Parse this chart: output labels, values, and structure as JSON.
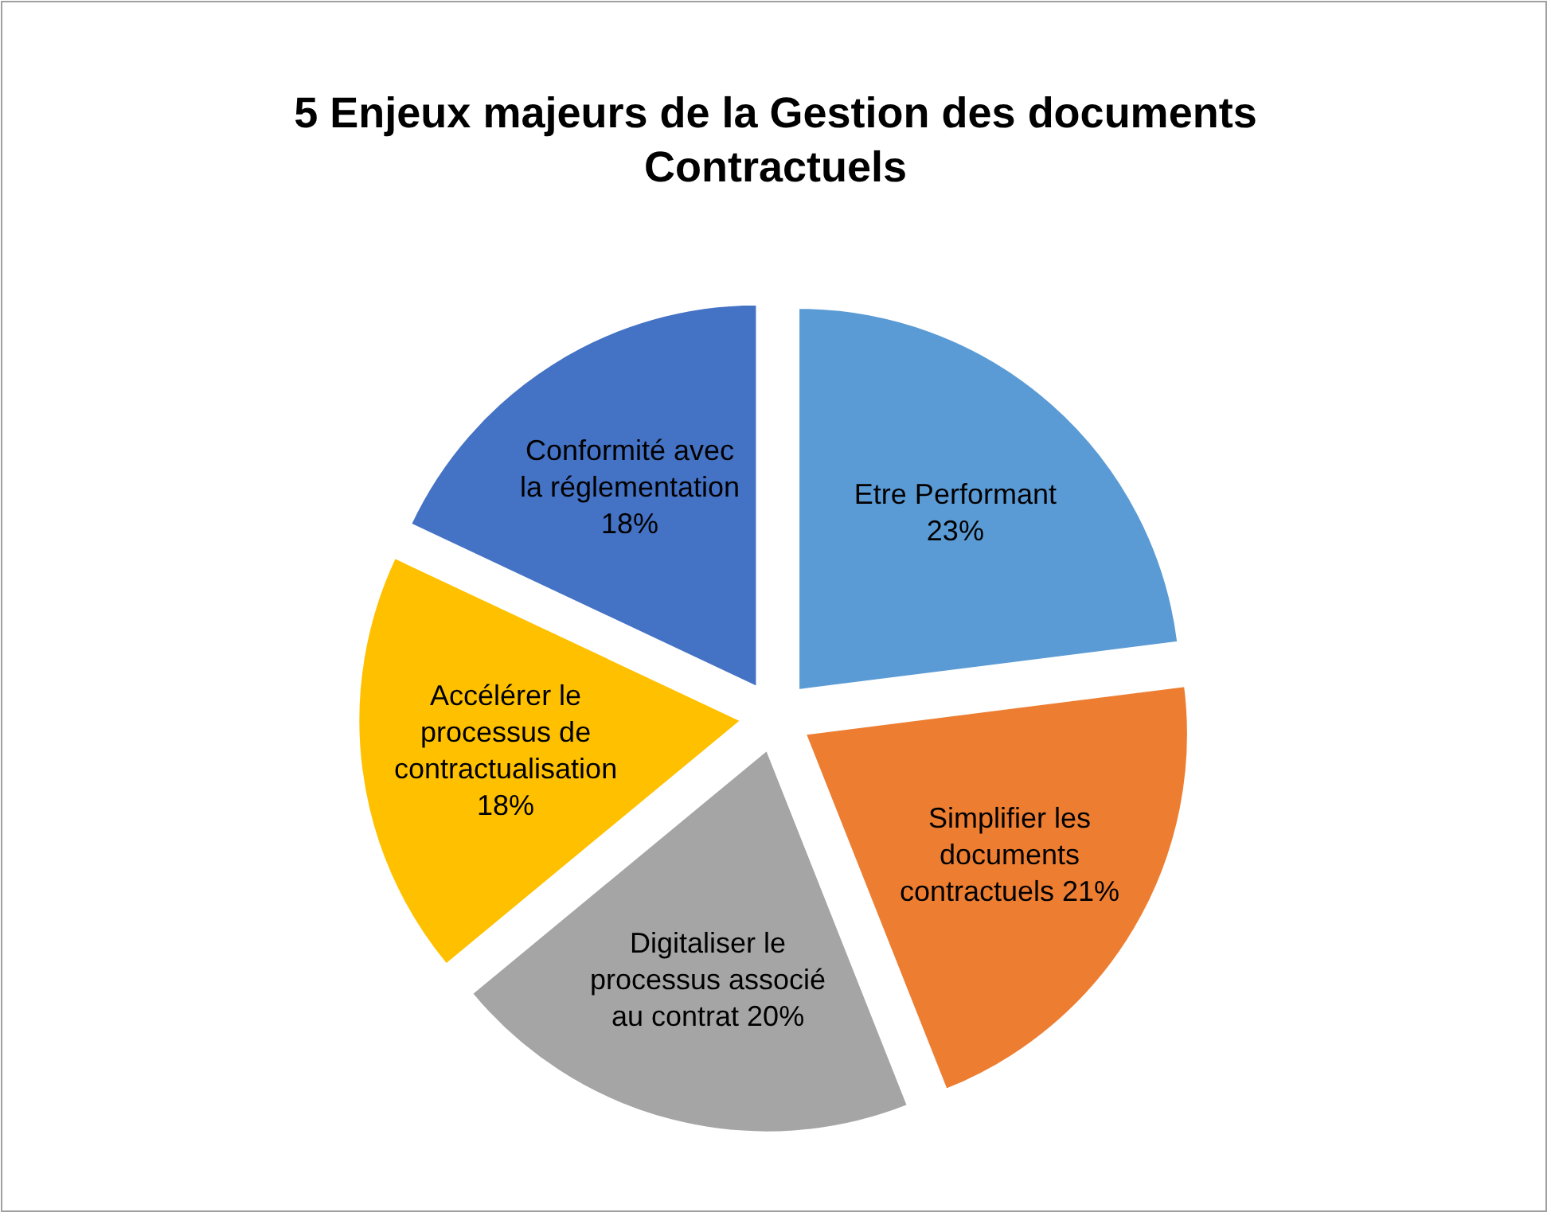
{
  "chart_data": {
    "type": "pie",
    "title": "5 Enjeux majeurs de la Gestion des documents Contractuels",
    "categories": [
      "Etre Performant",
      "Simplifier les documents contractuels",
      "Digitaliser le processus associé au contrat",
      "Accélérer le processus de contractualisation",
      "Conformité avec la réglementation"
    ],
    "values": [
      23,
      21,
      20,
      18,
      18
    ],
    "value_labels": [
      "23%",
      "21%",
      "20%",
      "18%",
      "18%"
    ],
    "colors": [
      "#5b9bd5",
      "#ed7d31",
      "#a5a5a5",
      "#ffc000",
      "#4472c4"
    ],
    "data_labels": true
  }
}
